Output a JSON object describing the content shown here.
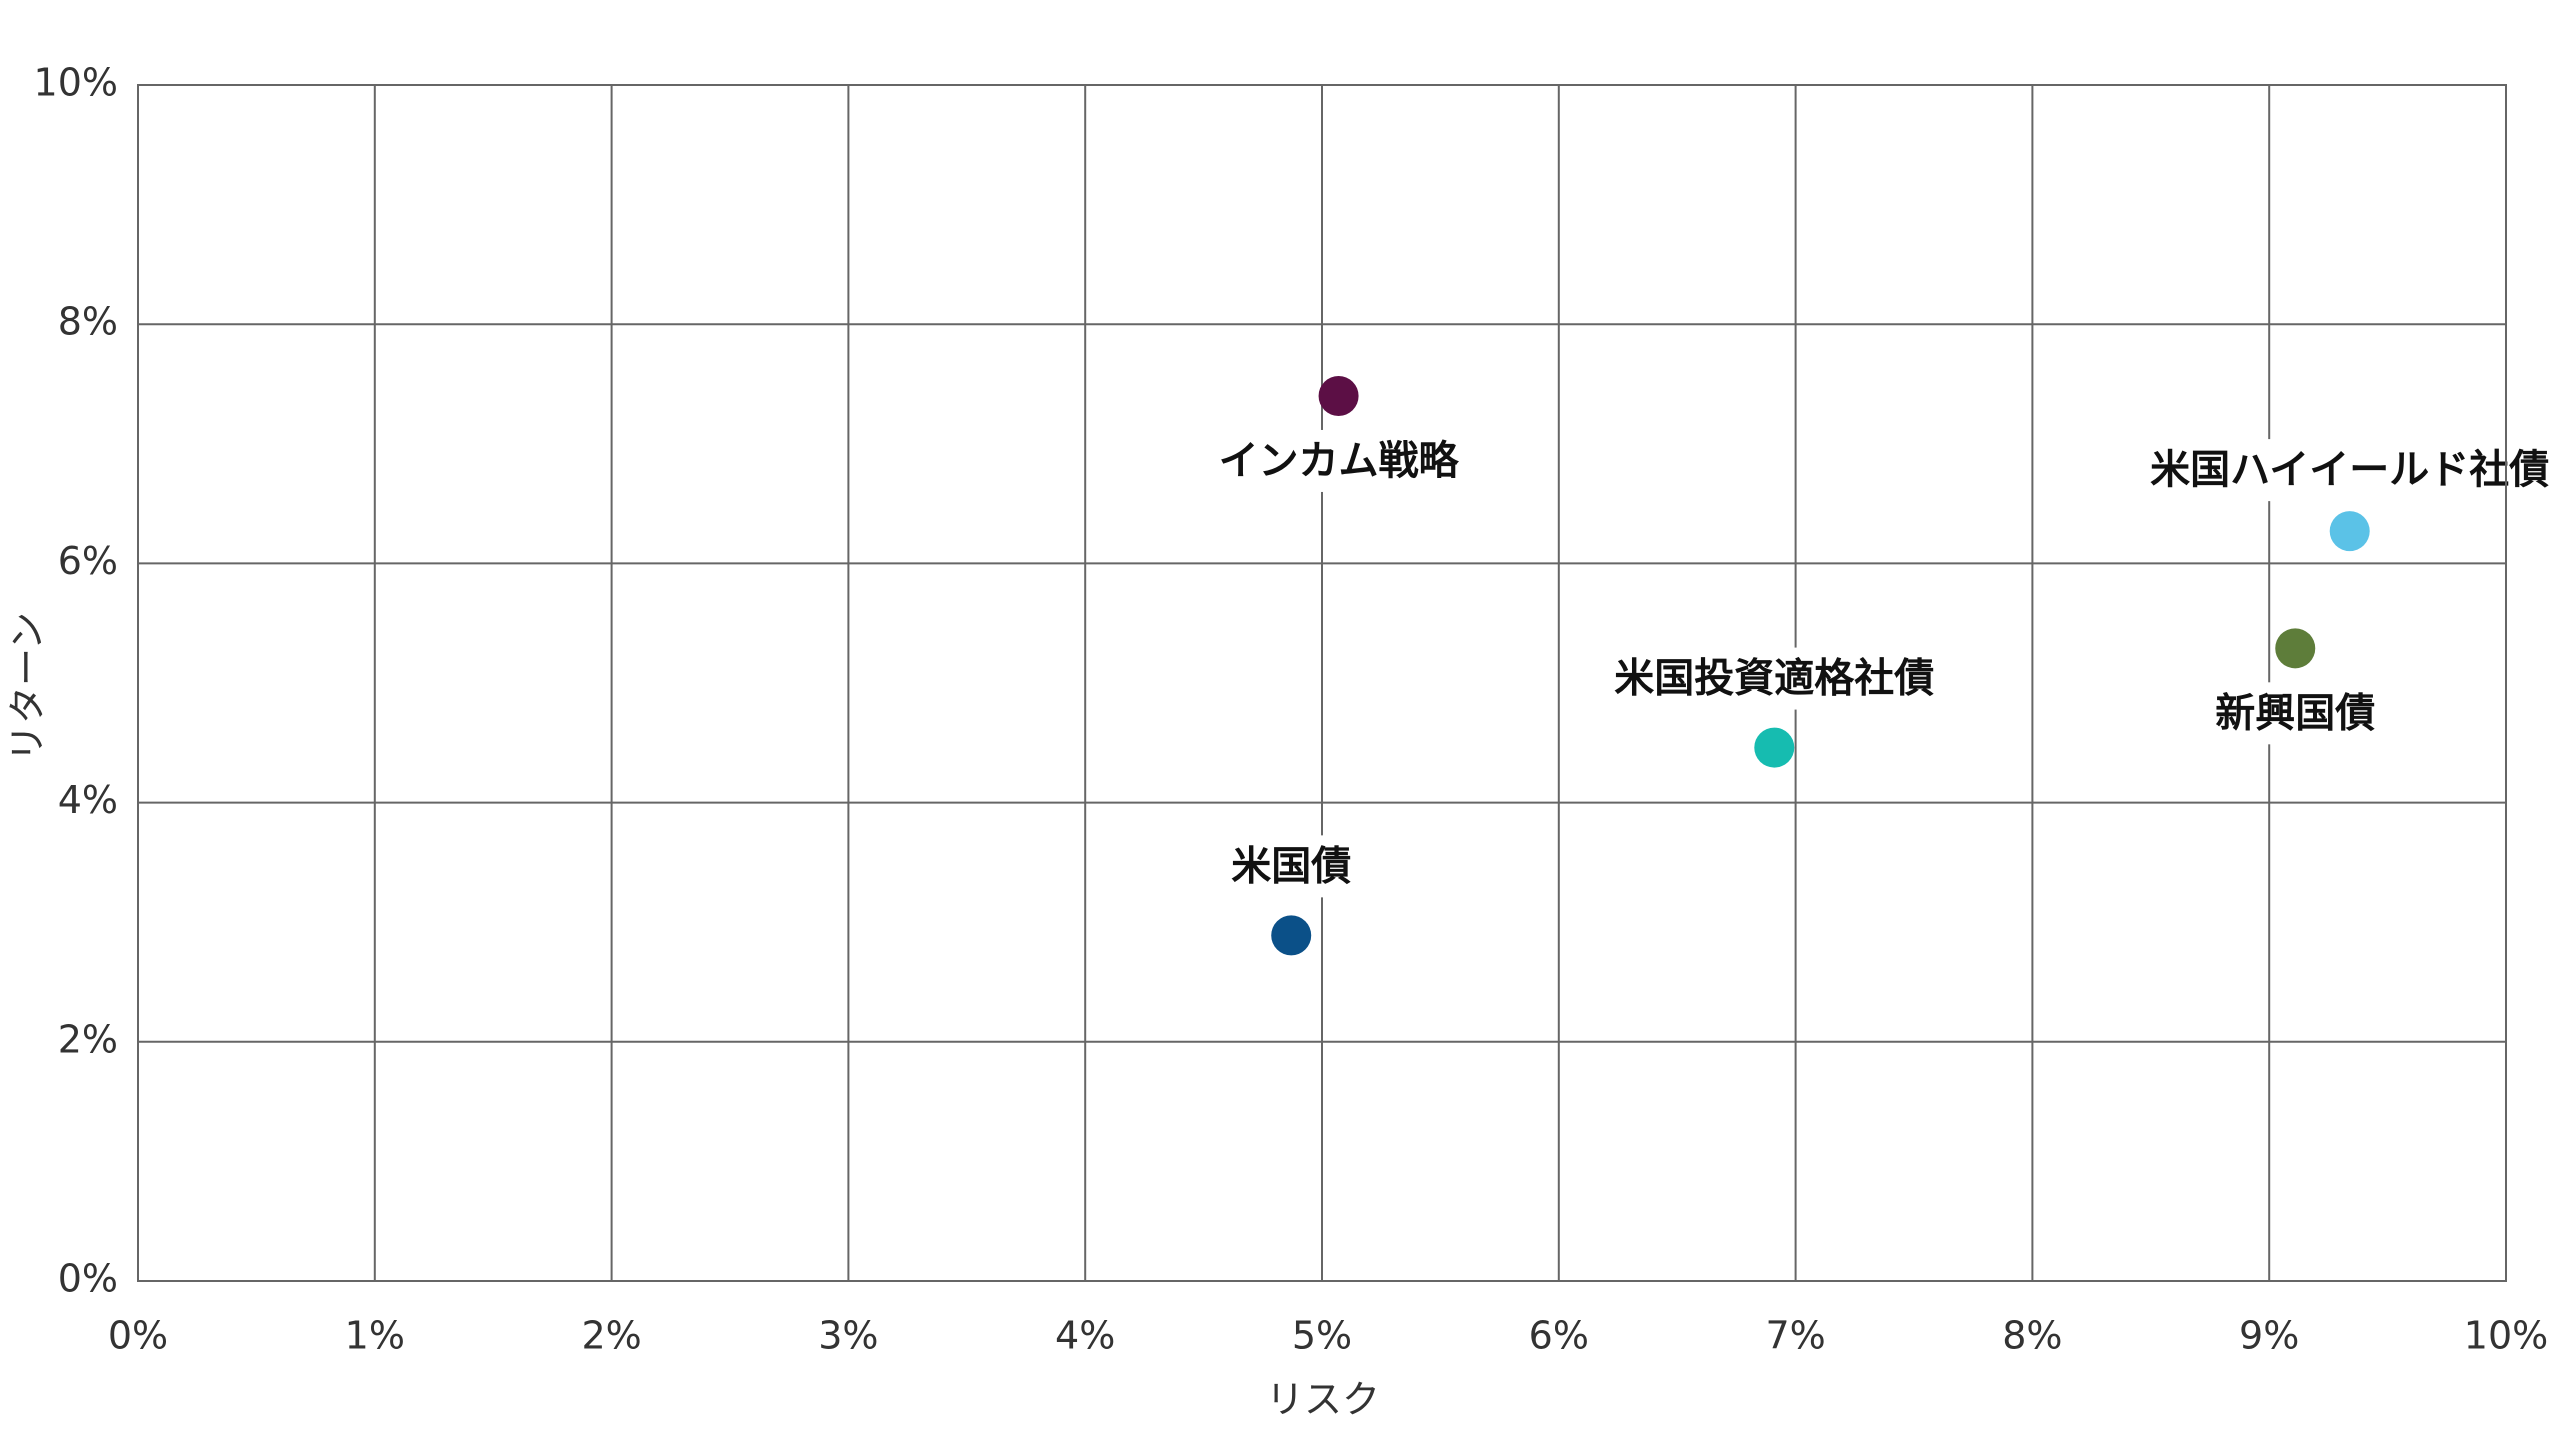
{
  "chart_data": {
    "type": "scatter",
    "x_label": "リスク",
    "y_label": "リターン",
    "series": [
      {
        "name": "インカム戦略",
        "color": "#5c0f45",
        "x": [
          5.07
        ],
        "values": [
          7.4
        ]
      },
      {
        "name": "米国ハイイールド社債",
        "color": "#5bc2e7",
        "x": [
          9.34
        ],
        "values": [
          6.27
        ]
      },
      {
        "name": "新興国債",
        "color": "#5e7d3a",
        "x": [
          9.11
        ],
        "values": [
          5.29
        ]
      },
      {
        "name": "米国投資適格社債",
        "color": "#16bcb0",
        "x": [
          6.91
        ],
        "values": [
          4.46
        ]
      },
      {
        "name": "米国債",
        "color": "#0b5088",
        "x": [
          4.87
        ],
        "values": [
          2.89
        ]
      }
    ],
    "xlim": [
      0,
      10
    ],
    "ylim": [
      0,
      10
    ],
    "xticks": [
      {
        "value": 0,
        "label": "0%"
      },
      {
        "value": 1,
        "label": "1%"
      },
      {
        "value": 2,
        "label": "2%"
      },
      {
        "value": 3,
        "label": "3%"
      },
      {
        "value": 4,
        "label": "4%"
      },
      {
        "value": 5,
        "label": "5%"
      },
      {
        "value": 6,
        "label": "6%"
      },
      {
        "value": 7,
        "label": "7%"
      },
      {
        "value": 8,
        "label": "8%"
      },
      {
        "value": 9,
        "label": "9%"
      },
      {
        "value": 10,
        "label": "10%"
      }
    ],
    "yticks": [
      {
        "value": 0,
        "label": "0%"
      },
      {
        "value": 2,
        "label": "2%"
      },
      {
        "value": 4,
        "label": "4%"
      },
      {
        "value": 6,
        "label": "6%"
      },
      {
        "value": 8,
        "label": "8%"
      },
      {
        "value": 10,
        "label": "10%"
      }
    ],
    "grid": true
  }
}
